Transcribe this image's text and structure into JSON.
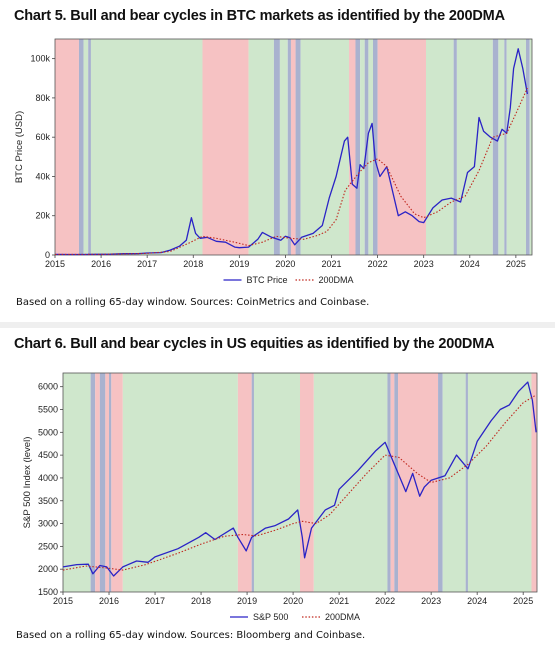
{
  "colors": {
    "bull": "#cfe7cc",
    "bear": "#f6c2c3",
    "transition": "#a9b2cf",
    "price": "#2a23c6",
    "dma": "#c0281f"
  },
  "chart_data": [
    {
      "type": "line",
      "title": "Chart 5. Bull and bear cycles in BTC markets as identified by the 200DMA",
      "ylabel": "BTC Price (USD)",
      "xlabel": "",
      "xlim": [
        2015.0,
        2025.35
      ],
      "ylim": [
        0,
        110000
      ],
      "x_ticks": [
        2015,
        2016,
        2017,
        2018,
        2019,
        2020,
        2021,
        2022,
        2023,
        2024,
        2025
      ],
      "x_tick_labels": [
        "2015",
        "2016",
        "2017",
        "2018",
        "2019",
        "2020",
        "2021",
        "2022",
        "2023",
        "2024",
        "2025"
      ],
      "y_ticks": [
        0,
        20000,
        40000,
        60000,
        80000,
        100000
      ],
      "y_tick_labels": [
        "0",
        "20k",
        "40k",
        "60k",
        "80k",
        "100k"
      ],
      "grid": false,
      "legend_position": "bottom",
      "source_note": "Based on a rolling 65-day window. Sources: CoinMetrics and Coinbase.",
      "regimes": [
        {
          "start": 2015.0,
          "end": 2015.52,
          "state": "bear"
        },
        {
          "start": 2015.52,
          "end": 2015.62,
          "state": "transition"
        },
        {
          "start": 2015.62,
          "end": 2015.72,
          "state": "bull"
        },
        {
          "start": 2015.72,
          "end": 2015.78,
          "state": "transition"
        },
        {
          "start": 2015.78,
          "end": 2018.2,
          "state": "bull"
        },
        {
          "start": 2018.2,
          "end": 2019.2,
          "state": "bear"
        },
        {
          "start": 2019.2,
          "end": 2019.75,
          "state": "bull"
        },
        {
          "start": 2019.75,
          "end": 2019.88,
          "state": "transition"
        },
        {
          "start": 2019.88,
          "end": 2020.05,
          "state": "bull"
        },
        {
          "start": 2020.05,
          "end": 2020.12,
          "state": "transition"
        },
        {
          "start": 2020.12,
          "end": 2020.22,
          "state": "bear"
        },
        {
          "start": 2020.22,
          "end": 2020.33,
          "state": "transition"
        },
        {
          "start": 2020.33,
          "end": 2021.38,
          "state": "bull"
        },
        {
          "start": 2021.38,
          "end": 2021.52,
          "state": "bear"
        },
        {
          "start": 2021.52,
          "end": 2021.62,
          "state": "transition"
        },
        {
          "start": 2021.62,
          "end": 2021.72,
          "state": "bull"
        },
        {
          "start": 2021.72,
          "end": 2021.8,
          "state": "transition"
        },
        {
          "start": 2021.8,
          "end": 2021.9,
          "state": "bull"
        },
        {
          "start": 2021.9,
          "end": 2022.0,
          "state": "transition"
        },
        {
          "start": 2022.0,
          "end": 2023.05,
          "state": "bear"
        },
        {
          "start": 2023.05,
          "end": 2023.65,
          "state": "bull"
        },
        {
          "start": 2023.65,
          "end": 2023.72,
          "state": "transition"
        },
        {
          "start": 2023.72,
          "end": 2024.5,
          "state": "bull"
        },
        {
          "start": 2024.5,
          "end": 2024.62,
          "state": "transition"
        },
        {
          "start": 2024.62,
          "end": 2024.75,
          "state": "bull"
        },
        {
          "start": 2024.75,
          "end": 2024.8,
          "state": "transition"
        },
        {
          "start": 2024.8,
          "end": 2025.22,
          "state": "bull"
        },
        {
          "start": 2025.22,
          "end": 2025.3,
          "state": "transition"
        },
        {
          "start": 2025.3,
          "end": 2025.35,
          "state": "bull"
        }
      ],
      "series": [
        {
          "name": "BTC Price",
          "style": "solid",
          "color_key": "price",
          "x": [
            2015.0,
            2015.3,
            2015.6,
            2015.9,
            2016.2,
            2016.5,
            2016.8,
            2017.0,
            2017.3,
            2017.5,
            2017.7,
            2017.85,
            2017.96,
            2018.05,
            2018.15,
            2018.3,
            2018.5,
            2018.7,
            2018.9,
            2019.0,
            2019.2,
            2019.4,
            2019.5,
            2019.7,
            2019.9,
            2020.0,
            2020.1,
            2020.2,
            2020.35,
            2020.6,
            2020.8,
            2020.95,
            2021.1,
            2021.2,
            2021.28,
            2021.35,
            2021.45,
            2021.55,
            2021.62,
            2021.7,
            2021.8,
            2021.88,
            2021.95,
            2022.05,
            2022.2,
            2022.35,
            2022.45,
            2022.6,
            2022.75,
            2022.9,
            2023.0,
            2023.2,
            2023.4,
            2023.6,
            2023.8,
            2023.95,
            2024.1,
            2024.2,
            2024.3,
            2024.45,
            2024.6,
            2024.7,
            2024.8,
            2024.88,
            2024.95,
            2025.05,
            2025.15,
            2025.25
          ],
          "y": [
            300,
            250,
            260,
            380,
            420,
            650,
            700,
            1000,
            1200,
            2500,
            4500,
            7500,
            19000,
            11000,
            8500,
            9000,
            7000,
            6500,
            4000,
            3700,
            4000,
            8000,
            11500,
            9000,
            7500,
            9500,
            8800,
            5200,
            9000,
            11000,
            15000,
            29000,
            40000,
            50000,
            58000,
            60000,
            36000,
            34000,
            46000,
            44000,
            62000,
            67000,
            48000,
            40000,
            45000,
            30000,
            20000,
            22000,
            20000,
            17000,
            16500,
            24000,
            28000,
            29000,
            27000,
            42000,
            45000,
            70000,
            63000,
            60000,
            58000,
            64000,
            62000,
            75000,
            95000,
            105000,
            95000,
            82000
          ]
        },
        {
          "name": "200DMA",
          "style": "dotted",
          "color_key": "dma",
          "x": [
            2015.0,
            2016.0,
            2017.0,
            2017.5,
            2017.9,
            2018.2,
            2018.5,
            2018.9,
            2019.2,
            2019.5,
            2019.8,
            2020.1,
            2020.4,
            2020.7,
            2020.9,
            2021.1,
            2021.3,
            2021.6,
            2021.8,
            2022.0,
            2022.2,
            2022.5,
            2022.8,
            2023.0,
            2023.3,
            2023.6,
            2023.9,
            2024.2,
            2024.5,
            2024.8,
            2025.0,
            2025.25
          ],
          "y": [
            280,
            350,
            800,
            1800,
            6000,
            9500,
            8500,
            6500,
            4800,
            6500,
            9500,
            8500,
            8000,
            10000,
            12000,
            18000,
            33000,
            42000,
            47000,
            49000,
            45000,
            30000,
            21000,
            19000,
            22000,
            27000,
            30000,
            43000,
            60000,
            62000,
            72000,
            85000
          ]
        }
      ]
    },
    {
      "type": "line",
      "title": "Chart 6. Bull and bear cycles in US equities as identified by the 200DMA",
      "ylabel": "S&P 500 Index (level)",
      "xlabel": "",
      "xlim": [
        2015.0,
        2025.3
      ],
      "ylim": [
        1500,
        6300
      ],
      "x_ticks": [
        2015,
        2016,
        2017,
        2018,
        2019,
        2020,
        2021,
        2022,
        2023,
        2024,
        2025
      ],
      "x_tick_labels": [
        "2015",
        "2016",
        "2017",
        "2018",
        "2019",
        "2020",
        "2021",
        "2022",
        "2023",
        "2024",
        "2025"
      ],
      "y_ticks": [
        1500,
        2000,
        2500,
        3000,
        3500,
        4000,
        4500,
        5000,
        5500,
        6000
      ],
      "y_tick_labels": [
        "1500",
        "2000",
        "2500",
        "3000",
        "3500",
        "4000",
        "4500",
        "5000",
        "5500",
        "6000"
      ],
      "grid": false,
      "legend_position": "bottom",
      "source_note": "Based on a rolling 65-day window. Sources: Bloomberg and Coinbase.",
      "regimes": [
        {
          "start": 2015.0,
          "end": 2015.6,
          "state": "bull"
        },
        {
          "start": 2015.6,
          "end": 2015.7,
          "state": "transition"
        },
        {
          "start": 2015.7,
          "end": 2015.8,
          "state": "bear"
        },
        {
          "start": 2015.8,
          "end": 2015.92,
          "state": "transition"
        },
        {
          "start": 2015.92,
          "end": 2016.0,
          "state": "bear"
        },
        {
          "start": 2016.0,
          "end": 2016.05,
          "state": "transition"
        },
        {
          "start": 2016.05,
          "end": 2016.3,
          "state": "bear"
        },
        {
          "start": 2016.3,
          "end": 2018.8,
          "state": "bull"
        },
        {
          "start": 2018.8,
          "end": 2019.1,
          "state": "bear"
        },
        {
          "start": 2019.1,
          "end": 2019.15,
          "state": "transition"
        },
        {
          "start": 2019.15,
          "end": 2020.15,
          "state": "bull"
        },
        {
          "start": 2020.15,
          "end": 2020.45,
          "state": "bear"
        },
        {
          "start": 2020.45,
          "end": 2022.05,
          "state": "bull"
        },
        {
          "start": 2022.05,
          "end": 2022.12,
          "state": "transition"
        },
        {
          "start": 2022.12,
          "end": 2022.2,
          "state": "bear"
        },
        {
          "start": 2022.2,
          "end": 2022.28,
          "state": "transition"
        },
        {
          "start": 2022.28,
          "end": 2023.15,
          "state": "bear"
        },
        {
          "start": 2023.15,
          "end": 2023.25,
          "state": "transition"
        },
        {
          "start": 2023.25,
          "end": 2023.75,
          "state": "bull"
        },
        {
          "start": 2023.75,
          "end": 2023.8,
          "state": "transition"
        },
        {
          "start": 2023.8,
          "end": 2025.18,
          "state": "bull"
        },
        {
          "start": 2025.18,
          "end": 2025.3,
          "state": "bear"
        }
      ],
      "series": [
        {
          "name": "S&P 500",
          "style": "solid",
          "color_key": "price",
          "x": [
            2015.0,
            2015.3,
            2015.55,
            2015.65,
            2015.8,
            2015.95,
            2016.1,
            2016.3,
            2016.6,
            2016.85,
            2017.0,
            2017.5,
            2017.95,
            2018.1,
            2018.3,
            2018.7,
            2018.8,
            2018.98,
            2019.1,
            2019.4,
            2019.6,
            2019.9,
            2020.1,
            2020.2,
            2020.25,
            2020.4,
            2020.7,
            2020.9,
            2021.0,
            2021.4,
            2021.8,
            2022.0,
            2022.2,
            2022.45,
            2022.6,
            2022.75,
            2022.85,
            2023.0,
            2023.3,
            2023.55,
            2023.8,
            2024.0,
            2024.3,
            2024.5,
            2024.7,
            2024.9,
            2025.1,
            2025.2,
            2025.28
          ],
          "y": [
            2050,
            2100,
            2110,
            1900,
            2080,
            2050,
            1850,
            2050,
            2180,
            2150,
            2270,
            2450,
            2700,
            2800,
            2650,
            2900,
            2700,
            2400,
            2700,
            2900,
            2950,
            3100,
            3300,
            2700,
            2250,
            2900,
            3300,
            3400,
            3750,
            4150,
            4600,
            4780,
            4300,
            3700,
            4100,
            3600,
            3800,
            3950,
            4050,
            4500,
            4200,
            4800,
            5250,
            5500,
            5600,
            5900,
            6100,
            5700,
            5000
          ]
        },
        {
          "name": "200DMA",
          "style": "dotted",
          "color_key": "dma",
          "x": [
            2015.0,
            2015.5,
            2016.0,
            2016.3,
            2016.8,
            2017.5,
            2018.0,
            2018.5,
            2018.9,
            2019.2,
            2019.6,
            2020.0,
            2020.2,
            2020.5,
            2020.8,
            2021.2,
            2021.6,
            2022.0,
            2022.3,
            2022.7,
            2023.0,
            2023.4,
            2023.8,
            2024.2,
            2024.6,
            2025.0,
            2025.25
          ],
          "y": [
            1980,
            2070,
            2020,
            1980,
            2100,
            2350,
            2550,
            2720,
            2760,
            2730,
            2850,
            3000,
            3050,
            3000,
            3200,
            3650,
            4100,
            4500,
            4450,
            4100,
            3900,
            4000,
            4300,
            4700,
            5200,
            5650,
            5800
          ]
        }
      ]
    }
  ]
}
